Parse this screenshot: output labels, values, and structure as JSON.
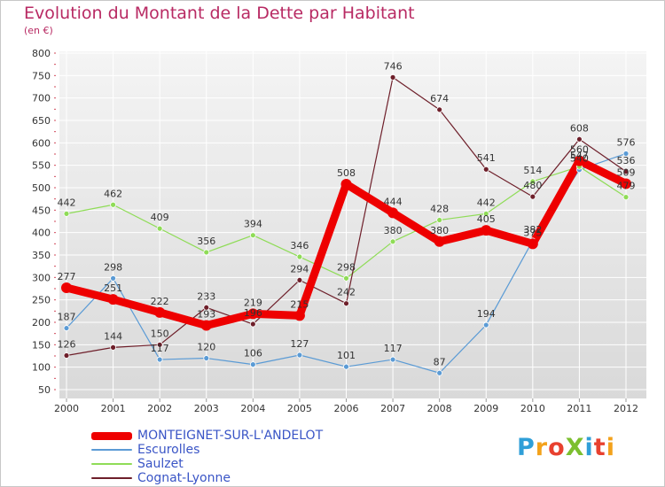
{
  "header": {
    "title": "Evolution du Montant de la Dette par Habitant",
    "subtitle": "(en €)"
  },
  "logo": {
    "text": "ProXiti",
    "colors": [
      "#2f9fd8",
      "#f3a21b",
      "#e8412f",
      "#7cbf2f",
      "#2f9fd8",
      "#e8412f",
      "#f3a21b"
    ]
  },
  "chart_data": {
    "type": "line",
    "title": "Evolution du Montant de la Dette par Habitant",
    "subtitle": "(en €)",
    "xlabel": "",
    "ylabel": "",
    "x": [
      "2000",
      "2001",
      "2002",
      "2003",
      "2004",
      "2005",
      "2006",
      "2007",
      "2008",
      "2009",
      "2010",
      "2011",
      "2012"
    ],
    "ylim": [
      50,
      800
    ],
    "yticks": [
      50,
      100,
      150,
      200,
      250,
      300,
      350,
      400,
      450,
      500,
      550,
      600,
      650,
      700,
      750,
      800
    ],
    "grid": true,
    "legend": "bottom-left",
    "series": [
      {
        "name": "MONTEIGNET-SUR-L'ANDELOT",
        "color": "#ee0000",
        "values": [
          277,
          251,
          222,
          193,
          219,
          215,
          508,
          444,
          380,
          405,
          375,
          560,
          509
        ],
        "labels": [
          "277",
          "251",
          "222",
          "193",
          "219",
          "215",
          "508",
          "444",
          "380",
          "405",
          "375",
          "560",
          "509"
        ]
      },
      {
        "name": "Escurolles",
        "color": "#5b9bd5",
        "values": [
          187,
          298,
          117,
          120,
          106,
          127,
          101,
          117,
          87,
          194,
          382,
          540,
          576
        ],
        "labels": [
          "187",
          "298",
          "117",
          "120",
          "106",
          "127",
          "101",
          "117",
          "87",
          "194",
          "382",
          "540",
          "576"
        ]
      },
      {
        "name": "Saulzet",
        "color": "#8fdc57",
        "values": [
          442,
          462,
          409,
          356,
          394,
          346,
          298,
          380,
          428,
          442,
          514,
          547,
          479
        ],
        "labels": [
          "442",
          "462",
          "409",
          "356",
          "394",
          "346",
          "298",
          "380",
          "428",
          "442",
          "514",
          "547",
          "479"
        ]
      },
      {
        "name": "Cognat-Lyonne",
        "color": "#6e1f2a",
        "values": [
          126,
          144,
          150,
          233,
          196,
          294,
          242,
          746,
          674,
          541,
          480,
          608,
          536
        ],
        "labels": [
          "126",
          "144",
          "150",
          "233",
          "196",
          "294",
          "242",
          "746",
          "674",
          "541",
          "480",
          "608",
          "536"
        ]
      }
    ]
  }
}
